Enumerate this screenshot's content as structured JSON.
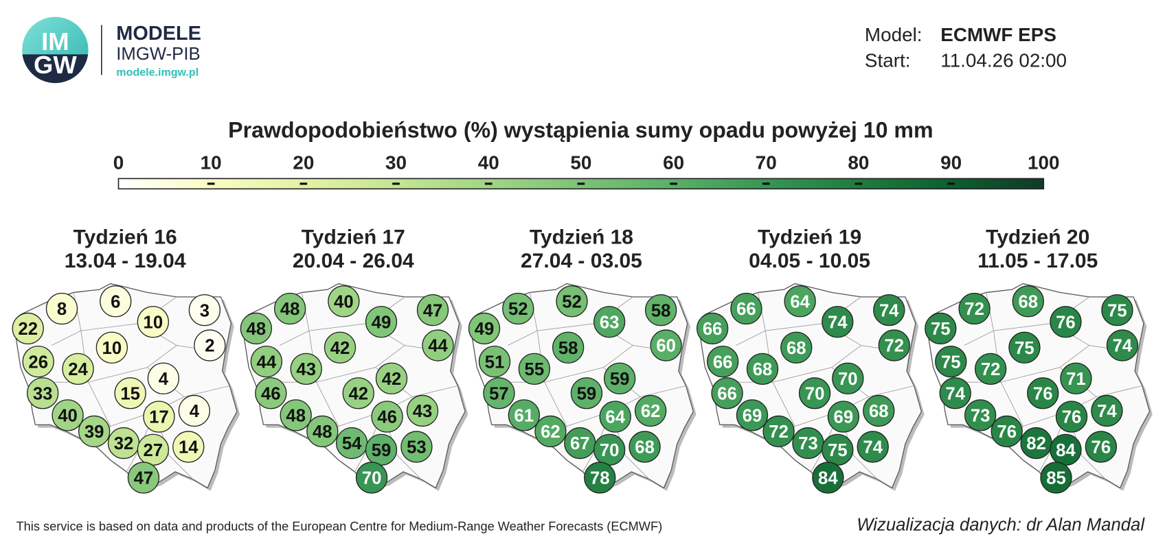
{
  "header": {
    "logo_top": "IM",
    "logo_bottom": "GW",
    "brand": "MODELE",
    "org": "IMGW-PIB",
    "url": "modele.imgw.pl",
    "model_label": "Model:",
    "model": "ECMWF EPS",
    "start_label": "Start:",
    "start": "11.04.26 02:00"
  },
  "title": "Prawdopodobieństwo (%) wystąpienia sumy opadu powyżej 10 mm",
  "colorbar": {
    "ticks": [
      0,
      10,
      20,
      30,
      40,
      50,
      60,
      70,
      80,
      90,
      100
    ],
    "colors": [
      "#ffffff",
      "#f9fcc4",
      "#e3f2a6",
      "#c4e594",
      "#a0d585",
      "#7dc377",
      "#5aaf67",
      "#389553",
      "#1f7c3f",
      "#0d5f2f",
      "#0f3b26"
    ]
  },
  "panels": [
    {
      "title": "Tydzień 16",
      "dates": "13.04 - 19.04",
      "values": [
        8,
        6,
        3,
        22,
        10,
        2,
        10,
        26,
        24,
        4,
        33,
        15,
        40,
        17,
        4,
        39,
        32,
        27,
        14,
        47
      ]
    },
    {
      "title": "Tydzień 17",
      "dates": "20.04 - 26.04",
      "values": [
        48,
        40,
        47,
        48,
        49,
        44,
        42,
        44,
        43,
        42,
        46,
        42,
        48,
        46,
        43,
        48,
        54,
        59,
        53,
        70
      ]
    },
    {
      "title": "Tydzień 18",
      "dates": "27.04 - 03.05",
      "values": [
        52,
        52,
        58,
        49,
        63,
        60,
        58,
        51,
        55,
        59,
        57,
        59,
        61,
        64,
        62,
        62,
        67,
        70,
        68,
        78
      ]
    },
    {
      "title": "Tydzień 19",
      "dates": "04.05 - 10.05",
      "values": [
        66,
        64,
        74,
        66,
        74,
        72,
        68,
        66,
        68,
        70,
        66,
        70,
        69,
        69,
        68,
        72,
        73,
        75,
        74,
        84
      ]
    },
    {
      "title": "Tydzień 20",
      "dates": "11.05 - 17.05",
      "values": [
        72,
        68,
        75,
        75,
        76,
        74,
        75,
        75,
        72,
        71,
        74,
        76,
        73,
        76,
        74,
        76,
        82,
        84,
        76,
        85
      ]
    }
  ],
  "footer": {
    "source": "This service is based on data and products of the European Centre for Medium-Range Weather Forecasts (ECMWF)",
    "credit": "Wizualizacja danych: dr Alan Mandal"
  }
}
